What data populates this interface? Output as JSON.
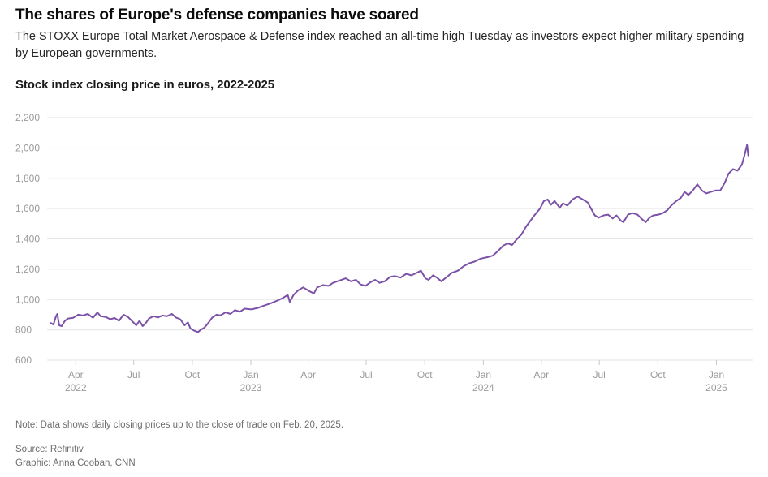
{
  "header": {
    "title": "The shares of Europe's defense companies have soared",
    "subtitle": "The STOXX Europe Total Market Aerospace & Defense index reached an all-time high Tuesday as investors expect higher military spending by European governments."
  },
  "footer": {
    "note": "Note: Data shows daily closing prices up to the close of trade on Feb. 20, 2025.",
    "source": "Source: Refinitiv",
    "credit": "Graphic: Anna Cooban, CNN"
  },
  "chart_data": {
    "type": "line",
    "title": "Stock index closing price in euros, 2022-2025",
    "xlabel": "",
    "ylabel": "",
    "xlim": [
      "2022-02-15",
      "2025-02-28"
    ],
    "ylim": [
      600,
      2200
    ],
    "y_ticks": [
      {
        "value": 600,
        "label": "600"
      },
      {
        "value": 800,
        "label": "800"
      },
      {
        "value": 1000,
        "label": "1,000"
      },
      {
        "value": 1200,
        "label": "1,200"
      },
      {
        "value": 1400,
        "label": "1,400"
      },
      {
        "value": 1600,
        "label": "1,600"
      },
      {
        "value": 1800,
        "label": "1,800"
      },
      {
        "value": 2000,
        "label": "2,000"
      },
      {
        "value": 2200,
        "label": "2,200"
      }
    ],
    "x_ticks": [
      {
        "date": "2022-04-01",
        "label": "Apr",
        "year": "2022"
      },
      {
        "date": "2022-07-01",
        "label": "Jul",
        "year": ""
      },
      {
        "date": "2022-10-01",
        "label": "Oct",
        "year": ""
      },
      {
        "date": "2023-01-01",
        "label": "Jan",
        "year": "2023"
      },
      {
        "date": "2023-04-01",
        "label": "Apr",
        "year": ""
      },
      {
        "date": "2023-07-01",
        "label": "Jul",
        "year": ""
      },
      {
        "date": "2023-10-01",
        "label": "Oct",
        "year": ""
      },
      {
        "date": "2024-01-01",
        "label": "Jan",
        "year": "2024"
      },
      {
        "date": "2024-04-01",
        "label": "Apr",
        "year": ""
      },
      {
        "date": "2024-07-01",
        "label": "Jul",
        "year": ""
      },
      {
        "date": "2024-10-01",
        "label": "Oct",
        "year": ""
      },
      {
        "date": "2025-01-01",
        "label": "Jan",
        "year": "2025"
      }
    ],
    "grid": true,
    "colors": {
      "line": "#7b52a8",
      "grid": "#e6e6e6",
      "tick_text": "#9a9a9a"
    },
    "series": [
      {
        "name": "",
        "points": [
          [
            "2022-02-21",
            845
          ],
          [
            "2022-02-25",
            835
          ],
          [
            "2022-03-01",
            890
          ],
          [
            "2022-03-03",
            905
          ],
          [
            "2022-03-06",
            830
          ],
          [
            "2022-03-10",
            825
          ],
          [
            "2022-03-15",
            860
          ],
          [
            "2022-03-20",
            875
          ],
          [
            "2022-03-28",
            880
          ],
          [
            "2022-04-05",
            900
          ],
          [
            "2022-04-12",
            895
          ],
          [
            "2022-04-20",
            905
          ],
          [
            "2022-04-28",
            880
          ],
          [
            "2022-05-05",
            915
          ],
          [
            "2022-05-10",
            890
          ],
          [
            "2022-05-18",
            885
          ],
          [
            "2022-05-25",
            870
          ],
          [
            "2022-06-01",
            878
          ],
          [
            "2022-06-08",
            860
          ],
          [
            "2022-06-15",
            900
          ],
          [
            "2022-06-22",
            885
          ],
          [
            "2022-06-28",
            860
          ],
          [
            "2022-07-05",
            830
          ],
          [
            "2022-07-10",
            860
          ],
          [
            "2022-07-15",
            825
          ],
          [
            "2022-07-20",
            845
          ],
          [
            "2022-07-25",
            875
          ],
          [
            "2022-08-01",
            890
          ],
          [
            "2022-08-08",
            882
          ],
          [
            "2022-08-15",
            895
          ],
          [
            "2022-08-22",
            890
          ],
          [
            "2022-08-30",
            905
          ],
          [
            "2022-09-05",
            882
          ],
          [
            "2022-09-12",
            870
          ],
          [
            "2022-09-19",
            830
          ],
          [
            "2022-09-24",
            850
          ],
          [
            "2022-09-28",
            810
          ],
          [
            "2022-10-04",
            795
          ],
          [
            "2022-10-10",
            785
          ],
          [
            "2022-10-14",
            800
          ],
          [
            "2022-10-20",
            815
          ],
          [
            "2022-10-26",
            845
          ],
          [
            "2022-11-01",
            880
          ],
          [
            "2022-11-08",
            900
          ],
          [
            "2022-11-14",
            895
          ],
          [
            "2022-11-22",
            915
          ],
          [
            "2022-11-30",
            905
          ],
          [
            "2022-12-07",
            930
          ],
          [
            "2022-12-15",
            920
          ],
          [
            "2022-12-22",
            940
          ],
          [
            "2023-01-02",
            935
          ],
          [
            "2023-01-12",
            945
          ],
          [
            "2023-01-22",
            960
          ],
          [
            "2023-02-01",
            975
          ],
          [
            "2023-02-10",
            990
          ],
          [
            "2023-02-20",
            1010
          ],
          [
            "2023-02-28",
            1030
          ],
          [
            "2023-03-03",
            985
          ],
          [
            "2023-03-09",
            1030
          ],
          [
            "2023-03-16",
            1060
          ],
          [
            "2023-03-24",
            1080
          ],
          [
            "2023-04-03",
            1055
          ],
          [
            "2023-04-10",
            1040
          ],
          [
            "2023-04-15",
            1080
          ],
          [
            "2023-04-24",
            1095
          ],
          [
            "2023-05-03",
            1090
          ],
          [
            "2023-05-10",
            1110
          ],
          [
            "2023-05-20",
            1125
          ],
          [
            "2023-05-30",
            1140
          ],
          [
            "2023-06-07",
            1120
          ],
          [
            "2023-06-15",
            1130
          ],
          [
            "2023-06-22",
            1100
          ],
          [
            "2023-06-30",
            1090
          ],
          [
            "2023-07-08",
            1115
          ],
          [
            "2023-07-15",
            1130
          ],
          [
            "2023-07-22",
            1110
          ],
          [
            "2023-07-30",
            1120
          ],
          [
            "2023-08-08",
            1150
          ],
          [
            "2023-08-15",
            1155
          ],
          [
            "2023-08-24",
            1145
          ],
          [
            "2023-09-02",
            1170
          ],
          [
            "2023-09-10",
            1160
          ],
          [
            "2023-09-18",
            1175
          ],
          [
            "2023-09-25",
            1190
          ],
          [
            "2023-10-02",
            1140
          ],
          [
            "2023-10-07",
            1130
          ],
          [
            "2023-10-14",
            1160
          ],
          [
            "2023-10-20",
            1145
          ],
          [
            "2023-10-27",
            1120
          ],
          [
            "2023-11-05",
            1150
          ],
          [
            "2023-11-12",
            1175
          ],
          [
            "2023-11-22",
            1190
          ],
          [
            "2023-12-01",
            1220
          ],
          [
            "2023-12-10",
            1240
          ],
          [
            "2023-12-18",
            1250
          ],
          [
            "2023-12-28",
            1270
          ],
          [
            "2024-01-08",
            1280
          ],
          [
            "2024-01-16",
            1290
          ],
          [
            "2024-01-24",
            1320
          ],
          [
            "2024-02-01",
            1355
          ],
          [
            "2024-02-08",
            1370
          ],
          [
            "2024-02-15",
            1360
          ],
          [
            "2024-02-22",
            1395
          ],
          [
            "2024-03-01",
            1430
          ],
          [
            "2024-03-08",
            1480
          ],
          [
            "2024-03-15",
            1520
          ],
          [
            "2024-03-22",
            1560
          ],
          [
            "2024-03-30",
            1600
          ],
          [
            "2024-04-05",
            1650
          ],
          [
            "2024-04-11",
            1660
          ],
          [
            "2024-04-16",
            1625
          ],
          [
            "2024-04-22",
            1650
          ],
          [
            "2024-04-30",
            1605
          ],
          [
            "2024-05-05",
            1635
          ],
          [
            "2024-05-12",
            1620
          ],
          [
            "2024-05-20",
            1660
          ],
          [
            "2024-05-28",
            1680
          ],
          [
            "2024-06-05",
            1660
          ],
          [
            "2024-06-13",
            1640
          ],
          [
            "2024-06-18",
            1600
          ],
          [
            "2024-06-24",
            1555
          ],
          [
            "2024-06-30",
            1540
          ],
          [
            "2024-07-08",
            1555
          ],
          [
            "2024-07-15",
            1560
          ],
          [
            "2024-07-22",
            1535
          ],
          [
            "2024-07-28",
            1555
          ],
          [
            "2024-08-04",
            1520
          ],
          [
            "2024-08-08",
            1510
          ],
          [
            "2024-08-15",
            1560
          ],
          [
            "2024-08-22",
            1570
          ],
          [
            "2024-08-30",
            1560
          ],
          [
            "2024-09-06",
            1530
          ],
          [
            "2024-09-12",
            1510
          ],
          [
            "2024-09-18",
            1540
          ],
          [
            "2024-09-24",
            1555
          ],
          [
            "2024-10-02",
            1560
          ],
          [
            "2024-10-09",
            1570
          ],
          [
            "2024-10-16",
            1590
          ],
          [
            "2024-10-22",
            1620
          ],
          [
            "2024-10-30",
            1650
          ],
          [
            "2024-11-06",
            1670
          ],
          [
            "2024-11-12",
            1710
          ],
          [
            "2024-11-18",
            1690
          ],
          [
            "2024-11-25",
            1720
          ],
          [
            "2024-12-02",
            1760
          ],
          [
            "2024-12-09",
            1720
          ],
          [
            "2024-12-16",
            1700
          ],
          [
            "2024-12-23",
            1710
          ],
          [
            "2024-12-31",
            1720
          ],
          [
            "2025-01-07",
            1720
          ],
          [
            "2025-01-14",
            1770
          ],
          [
            "2025-01-20",
            1830
          ],
          [
            "2025-01-27",
            1860
          ],
          [
            "2025-02-03",
            1850
          ],
          [
            "2025-02-10",
            1890
          ],
          [
            "2025-02-14",
            1950
          ],
          [
            "2025-02-18",
            2020
          ],
          [
            "2025-02-20",
            1950
          ]
        ]
      }
    ]
  }
}
